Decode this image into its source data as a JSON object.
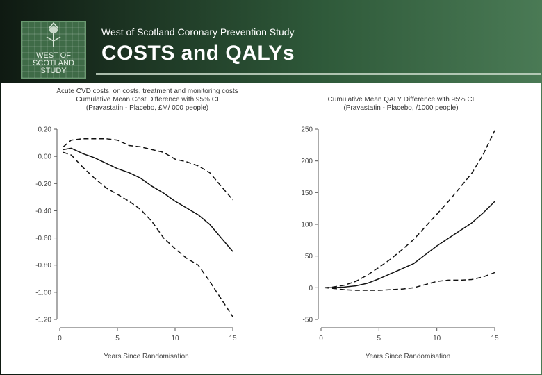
{
  "header": {
    "subtitle": "West of Scotland Coronary Prevention Study",
    "title": "COSTS and QALYs",
    "logo_lines": [
      "WEST OF",
      "SCOTLAND",
      "STUDY"
    ]
  },
  "chart_data": [
    {
      "type": "line",
      "title_lines": [
        "Acute CVD costs, on costs, treatment and monitoring costs",
        "Cumulative Mean Cost Difference with 95% CI",
        "(Pravastatin - Placebo, £M/ 000 people)"
      ],
      "xlabel": "Years Since Randomisation",
      "ylabel": "",
      "xlim": [
        0,
        15
      ],
      "ylim": [
        -1.2,
        0.2
      ],
      "xticks": [
        0,
        5,
        10,
        15
      ],
      "yticks": [
        0.2,
        0.0,
        -0.2,
        -0.4,
        -0.6,
        -0.8,
        -1.0,
        -1.2
      ],
      "ytick_labels": [
        "0.20",
        "0.00",
        "-0.20",
        "-0.40",
        "-0.60",
        "-0.80",
        "-1.00",
        "-1.20"
      ],
      "series": [
        {
          "name": "mean",
          "style": "solid",
          "x": [
            0.3,
            1,
            2,
            3,
            4,
            5,
            6,
            7,
            8,
            9,
            10,
            11,
            12,
            13,
            14,
            15
          ],
          "y": [
            0.05,
            0.06,
            0.02,
            -0.01,
            -0.05,
            -0.09,
            -0.12,
            -0.16,
            -0.22,
            -0.27,
            -0.33,
            -0.38,
            -0.43,
            -0.5,
            -0.6,
            -0.7
          ]
        },
        {
          "name": "upper 95% CI",
          "style": "dashed",
          "x": [
            0.3,
            1,
            2,
            3,
            4,
            5,
            6,
            7,
            8,
            9,
            10,
            11,
            12,
            13,
            14,
            15
          ],
          "y": [
            0.07,
            0.12,
            0.13,
            0.13,
            0.13,
            0.12,
            0.08,
            0.07,
            0.05,
            0.03,
            -0.02,
            -0.04,
            -0.07,
            -0.12,
            -0.22,
            -0.32
          ]
        },
        {
          "name": "lower 95% CI",
          "style": "dashed",
          "x": [
            0.3,
            1,
            2,
            3,
            4,
            5,
            6,
            7,
            8,
            9,
            10,
            11,
            12,
            13,
            14,
            15
          ],
          "y": [
            0.03,
            0.01,
            -0.08,
            -0.16,
            -0.23,
            -0.28,
            -0.33,
            -0.39,
            -0.48,
            -0.6,
            -0.68,
            -0.75,
            -0.8,
            -0.92,
            -1.05,
            -1.18
          ]
        }
      ]
    },
    {
      "type": "line",
      "title_lines": [
        "Cumulative Mean QALY Difference with 95% CI",
        "(Pravastatin - Placebo, /1000 people)"
      ],
      "xlabel": "Years Since Randomisation",
      "ylabel": "",
      "xlim": [
        0,
        15
      ],
      "ylim": [
        -50,
        250
      ],
      "xticks": [
        0,
        5,
        10,
        15
      ],
      "yticks": [
        250,
        200,
        150,
        100,
        50,
        0,
        -50
      ],
      "ytick_labels": [
        "250",
        "200",
        "150",
        "100",
        "50",
        "0",
        "-50"
      ],
      "series": [
        {
          "name": "mean",
          "style": "solid",
          "x": [
            0.3,
            1,
            2,
            3,
            4,
            5,
            6,
            7,
            8,
            9,
            10,
            11,
            12,
            13,
            14,
            15
          ],
          "y": [
            0,
            0,
            1,
            3,
            7,
            14,
            22,
            30,
            38,
            52,
            66,
            78,
            90,
            102,
            118,
            136
          ]
        },
        {
          "name": "upper 95% CI",
          "style": "dashed",
          "x": [
            0.3,
            1,
            2,
            3,
            4,
            5,
            6,
            7,
            8,
            9,
            10,
            11,
            12,
            13,
            14,
            15
          ],
          "y": [
            0,
            1,
            4,
            10,
            20,
            32,
            45,
            60,
            76,
            96,
            116,
            136,
            158,
            180,
            210,
            248
          ]
        },
        {
          "name": "lower 95% CI",
          "style": "dashed",
          "x": [
            0.3,
            1,
            2,
            3,
            4,
            5,
            6,
            7,
            8,
            9,
            10,
            11,
            12,
            13,
            14,
            15
          ],
          "y": [
            0,
            -1,
            -3,
            -4,
            -4,
            -4,
            -3,
            -2,
            0,
            5,
            10,
            12,
            12,
            13,
            17,
            24
          ]
        }
      ]
    }
  ]
}
